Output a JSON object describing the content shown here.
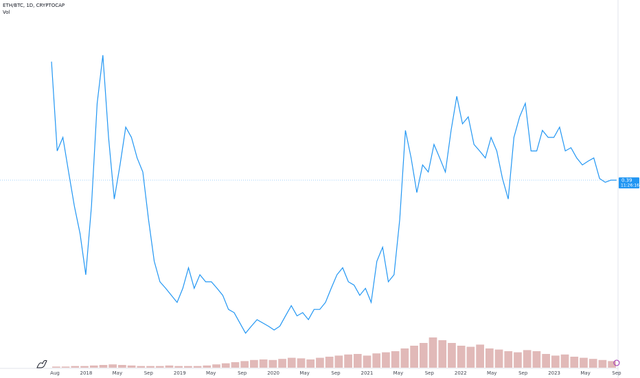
{
  "chart_data": {
    "type": "line",
    "title": "ETH/BTC, 1D, CRYPTOCAP",
    "volume_label": "Vol",
    "color": "#2196f3",
    "ylim": [
      0.075,
      0.723
    ],
    "values": [
      0.609,
      0.444,
      0.469,
      0.405,
      0.342,
      0.291,
      0.215,
      0.342,
      0.532,
      0.621,
      0.469,
      0.355,
      0.418,
      0.488,
      0.469,
      0.431,
      0.405,
      0.317,
      0.24,
      0.202,
      0.19,
      0.177,
      0.164,
      0.19,
      0.228,
      0.19,
      0.215,
      0.202,
      0.202,
      0.19,
      0.177,
      0.151,
      0.145,
      0.126,
      0.107,
      0.12,
      0.132,
      0.126,
      0.12,
      0.113,
      0.12,
      0.139,
      0.158,
      0.139,
      0.145,
      0.132,
      0.151,
      0.151,
      0.164,
      0.19,
      0.215,
      0.228,
      0.202,
      0.196,
      0.177,
      0.19,
      0.164,
      0.24,
      0.266,
      0.202,
      0.215,
      0.317,
      0.482,
      0.431,
      0.367,
      0.418,
      0.405,
      0.456,
      0.431,
      0.405,
      0.482,
      0.545,
      0.494,
      0.507,
      0.456,
      0.444,
      0.431,
      0.469,
      0.444,
      0.393,
      0.355,
      0.469,
      0.507,
      0.532,
      0.444,
      0.444,
      0.482,
      0.469,
      0.469,
      0.488,
      0.444,
      0.45,
      0.431,
      0.418,
      0.425,
      0.431,
      0.393,
      0.386,
      0.39,
      0.39
    ],
    "xticks": [
      "Aug",
      "2018",
      "May",
      "Sep",
      "2019",
      "May",
      "Sep",
      "2020",
      "May",
      "Sep",
      "2021",
      "May",
      "Sep",
      "2022",
      "May",
      "Sep",
      "2023",
      "May",
      "Sep"
    ],
    "last_value": 0.39,
    "countdown": "11:26:16",
    "volume": {
      "color": "#d9a8a6",
      "y2lim": [
        0,
        100
      ],
      "values": [
        2,
        2,
        3,
        3,
        4,
        5,
        6,
        5,
        4,
        3,
        3,
        3,
        4,
        3,
        3,
        3,
        4,
        6,
        8,
        10,
        12,
        14,
        15,
        14,
        16,
        18,
        17,
        15,
        18,
        20,
        22,
        24,
        25,
        22,
        26,
        28,
        30,
        35,
        40,
        45,
        55,
        50,
        45,
        40,
        38,
        42,
        35,
        33,
        30,
        28,
        32,
        30,
        25,
        22,
        24,
        20,
        18,
        16,
        14,
        12
      ]
    }
  }
}
